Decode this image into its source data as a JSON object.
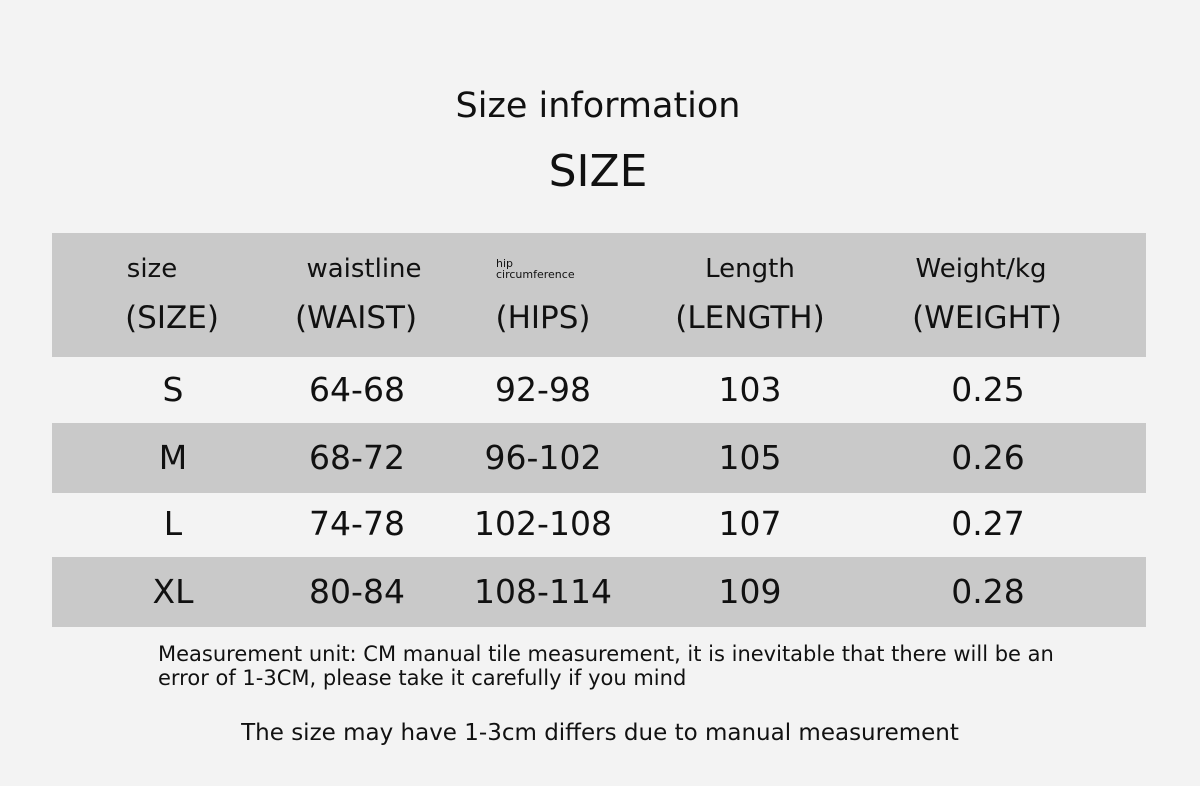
{
  "header": {
    "title": "Size information",
    "subtitle": "SIZE"
  },
  "table": {
    "columns": [
      {
        "label_lines": [
          "size"
        ],
        "code": "(SIZE)"
      },
      {
        "label_lines": [
          "waistline"
        ],
        "code": "(WAIST)"
      },
      {
        "label_lines": [
          "hip",
          "circumference"
        ],
        "code": "(HIPS)"
      },
      {
        "label_lines": [
          "Length"
        ],
        "code": "(LENGTH)"
      },
      {
        "label_lines": [
          "Weight/kg"
        ],
        "code": "(WEIGHT)"
      }
    ],
    "rows": [
      [
        "S",
        "64-68",
        "92-98",
        "103",
        "0.25"
      ],
      [
        "M",
        "68-72",
        "96-102",
        "105",
        "0.26"
      ],
      [
        "L",
        "74-78",
        "102-108",
        "107",
        "0.27"
      ],
      [
        "XL",
        "80-84",
        "108-114",
        "109",
        "0.28"
      ]
    ]
  },
  "notes": {
    "lines": [
      "Measurement unit: CM manual tile measurement, it is inevitable that there will be an",
      "error of 1-3CM, please take it carefully if you mind"
    ]
  },
  "footer": "The size may have 1-3cm differs due to manual measurement"
}
